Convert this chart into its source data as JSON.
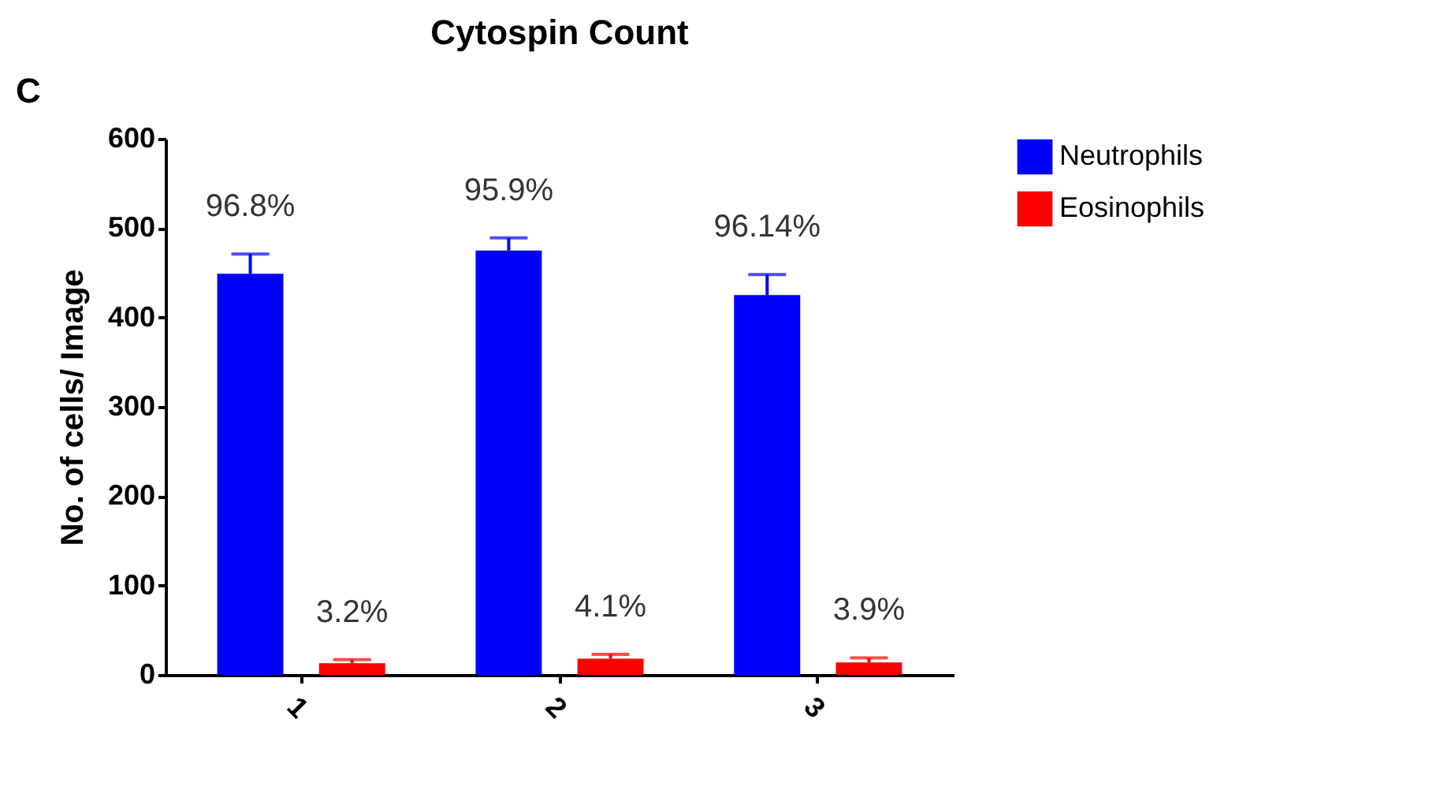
{
  "chart_data": {
    "type": "bar",
    "title": "Cytospin Count",
    "ylabel": "No. of cells/ Image",
    "categories": [
      "1",
      "2",
      "3"
    ],
    "series": [
      {
        "name": "Neutrophils",
        "color": "#0000ff",
        "values": [
          449,
          475,
          425
        ],
        "errors": [
          [
            449,
            471
          ],
          [
            475,
            489
          ],
          [
            425,
            448
          ]
        ]
      },
      {
        "name": "Eosinophils",
        "color": "#ff0000",
        "values": [
          13,
          18,
          14
        ],
        "errors": [
          [
            13,
            17
          ],
          [
            18,
            23
          ],
          [
            14,
            19
          ]
        ]
      }
    ],
    "ylim": [
      0,
      600
    ],
    "yticks": [
      0,
      100,
      200,
      300,
      400,
      500,
      600
    ],
    "grid": false,
    "legend": "top right",
    "annotations": [
      "C",
      "96.8%",
      "3.2%",
      "95.9%",
      "4.1%",
      "96.14%",
      "3.9%"
    ]
  }
}
